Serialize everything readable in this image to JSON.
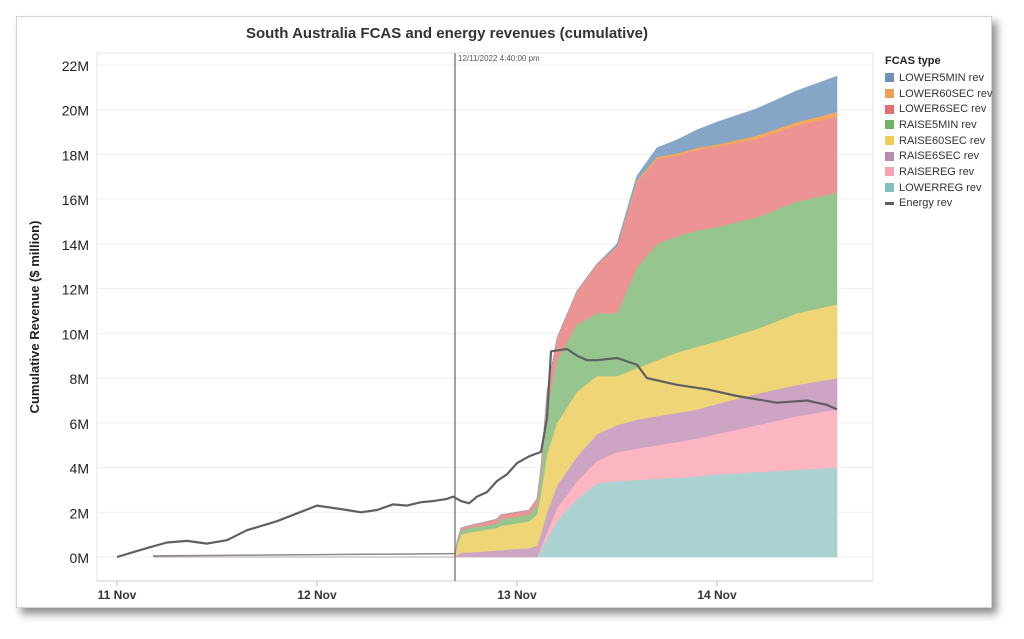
{
  "chart_data": {
    "type": "area",
    "title": "South Australia FCAS and energy revenues (cumulative)",
    "ylabel": "Cumulative Revenue ($ million)",
    "xlabel": "",
    "ylim": [
      0,
      22
    ],
    "y_ticks": [
      {
        "value": 0,
        "label": "0M"
      },
      {
        "value": 2,
        "label": "2M"
      },
      {
        "value": 4,
        "label": "4M"
      },
      {
        "value": 6,
        "label": "6M"
      },
      {
        "value": 8,
        "label": "8M"
      },
      {
        "value": 10,
        "label": "10M"
      },
      {
        "value": 12,
        "label": "12M"
      },
      {
        "value": 14,
        "label": "14M"
      },
      {
        "value": 16,
        "label": "16M"
      },
      {
        "value": 18,
        "label": "18M"
      },
      {
        "value": 20,
        "label": "20M"
      },
      {
        "value": 22,
        "label": "22M"
      }
    ],
    "xlim": [
      0,
      3.6
    ],
    "x_ticks": [
      {
        "value": 0,
        "label": "11 Nov"
      },
      {
        "value": 1,
        "label": "12 Nov"
      },
      {
        "value": 2,
        "label": "13 Nov"
      },
      {
        "value": 3,
        "label": "14 Nov"
      }
    ],
    "x_unit": "days from 11 Nov 00:00",
    "annotation": {
      "x": 1.69,
      "label": "12/11/2022 4:40:00 pm"
    },
    "legend_title": "FCAS type",
    "legend_position": "right",
    "grid": true,
    "x": [
      0.18,
      1.69,
      1.7,
      1.72,
      1.76,
      1.9,
      1.92,
      1.96,
      2.06,
      2.1,
      2.12,
      2.15,
      2.2,
      2.3,
      2.4,
      2.5,
      2.6,
      2.7,
      2.8,
      2.9,
      3.0,
      3.2,
      3.4,
      3.6
    ],
    "series": [
      {
        "name": "LOWERREG rev",
        "color": "#a9d2d0",
        "values": [
          0,
          0,
          0,
          0,
          0,
          0,
          0,
          0,
          0,
          0,
          0.3,
          0.8,
          1.6,
          2.6,
          3.3,
          3.4,
          3.45,
          3.5,
          3.55,
          3.6,
          3.7,
          3.8,
          3.9,
          4.0
        ]
      },
      {
        "name": "RAISEREG rev",
        "color": "#fcb6c2",
        "values": [
          0,
          0,
          0,
          0,
          0,
          0,
          0,
          0,
          0,
          0,
          0.15,
          0.3,
          0.6,
          0.8,
          1.0,
          1.3,
          1.4,
          1.5,
          1.6,
          1.7,
          1.8,
          2.1,
          2.4,
          2.6
        ]
      },
      {
        "name": "RAISE6SEC rev",
        "color": "#cda4c3",
        "values": [
          0,
          0,
          0.1,
          0.2,
          0.2,
          0.3,
          0.3,
          0.35,
          0.4,
          0.5,
          0.6,
          0.9,
          1.0,
          1.1,
          1.2,
          1.2,
          1.3,
          1.3,
          1.3,
          1.3,
          1.35,
          1.4,
          1.4,
          1.4
        ]
      },
      {
        "name": "RAISE60SEC rev",
        "color": "#f0d576",
        "values": [
          0,
          0,
          0.4,
          0.8,
          0.9,
          1.0,
          1.1,
          1.1,
          1.2,
          1.4,
          1.8,
          2.6,
          2.8,
          2.9,
          2.6,
          2.2,
          2.3,
          2.5,
          2.7,
          2.8,
          2.8,
          2.9,
          3.2,
          3.3
        ]
      },
      {
        "name": "RAISE5MIN rev",
        "color": "#97c58f",
        "values": [
          0,
          0,
          0.1,
          0.2,
          0.2,
          0.2,
          0.3,
          0.3,
          0.3,
          0.4,
          0.8,
          2.0,
          2.8,
          3.0,
          2.8,
          2.8,
          4.5,
          5.2,
          5.2,
          5.2,
          5.1,
          5.0,
          5.0,
          5.0
        ]
      },
      {
        "name": "RAISE5MIN_pad",
        "color": "none",
        "hidden": true,
        "values": [
          0,
          0,
          0,
          0,
          0,
          0,
          0,
          0,
          0,
          0,
          0,
          0,
          0,
          0,
          0,
          0,
          0,
          0,
          0,
          0,
          0,
          0,
          0,
          0
        ]
      },
      {
        "name": "LOWER6SEC rev",
        "color": "#ec9494",
        "values": [
          0,
          0,
          0.1,
          0.1,
          0.1,
          0.2,
          0.2,
          0.2,
          0.2,
          0.3,
          0.4,
          0.8,
          1.0,
          1.5,
          2.2,
          3.0,
          3.8,
          3.8,
          3.6,
          3.6,
          3.6,
          3.5,
          3.4,
          3.4
        ]
      },
      {
        "name": "LOWER60SEC rev",
        "color": "#f4a85e",
        "values": [
          0,
          0,
          0,
          0,
          0,
          0,
          0,
          0,
          0,
          0,
          0,
          0,
          0,
          0,
          0,
          0,
          0.1,
          0.1,
          0.1,
          0.1,
          0.1,
          0.15,
          0.15,
          0.2
        ]
      },
      {
        "name": "LOWER5MIN rev",
        "color": "#86a6c7",
        "values": [
          0,
          0,
          0,
          0,
          0,
          0,
          0,
          0,
          0,
          0,
          0,
          0,
          0,
          0,
          0,
          0.1,
          0.2,
          0.4,
          0.6,
          0.8,
          1.0,
          1.2,
          1.4,
          1.6
        ]
      }
    ],
    "energy": {
      "name": "Energy rev",
      "color": "#5f6062",
      "x": [
        0.0,
        0.15,
        0.25,
        0.35,
        0.45,
        0.55,
        0.65,
        0.8,
        1.0,
        1.15,
        1.22,
        1.3,
        1.38,
        1.45,
        1.52,
        1.58,
        1.65,
        1.68,
        1.72,
        1.76,
        1.8,
        1.85,
        1.9,
        1.95,
        2.0,
        2.06,
        2.12,
        2.15,
        2.17,
        2.25,
        2.3,
        2.35,
        2.4,
        2.5,
        2.6,
        2.65,
        2.8,
        2.95,
        3.1,
        3.3,
        3.45,
        3.55,
        3.6
      ],
      "values": [
        0.0,
        0.4,
        0.65,
        0.72,
        0.6,
        0.75,
        1.2,
        1.6,
        2.3,
        2.1,
        2.0,
        2.1,
        2.35,
        2.3,
        2.45,
        2.5,
        2.6,
        2.7,
        2.5,
        2.4,
        2.7,
        2.9,
        3.4,
        3.7,
        4.2,
        4.5,
        4.7,
        6.2,
        9.2,
        9.3,
        9.0,
        8.8,
        8.8,
        8.9,
        8.6,
        8.0,
        7.7,
        7.5,
        7.2,
        6.9,
        7.0,
        6.8,
        6.6
      ]
    }
  },
  "legend": {
    "title": "FCAS type",
    "items": [
      {
        "label": "LOWER5MIN rev",
        "color": "#6f92ba",
        "kind": "swatch"
      },
      {
        "label": "LOWER60SEC rev",
        "color": "#f0a053",
        "kind": "swatch"
      },
      {
        "label": "LOWER6SEC rev",
        "color": "#e46d6d",
        "kind": "swatch"
      },
      {
        "label": "RAISE5MIN rev",
        "color": "#6fb467",
        "kind": "swatch"
      },
      {
        "label": "RAISE60SEC rev",
        "color": "#edcc59",
        "kind": "swatch"
      },
      {
        "label": "RAISE6SEC rev",
        "color": "#b98bb0",
        "kind": "swatch"
      },
      {
        "label": "RAISEREG rev",
        "color": "#f9a2b1",
        "kind": "swatch"
      },
      {
        "label": "LOWERREG rev",
        "color": "#82bfbc",
        "kind": "swatch"
      },
      {
        "label": "Energy rev",
        "color": "#5f6062",
        "kind": "line"
      }
    ]
  }
}
